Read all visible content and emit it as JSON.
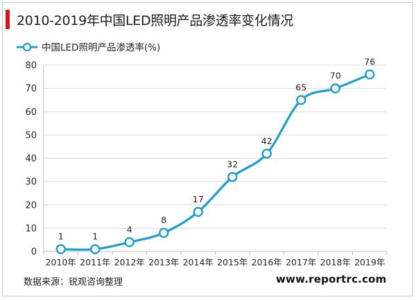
{
  "header": {
    "title": "2010-2019年中国LED照明产品渗透率变化情况"
  },
  "footer": {
    "source": "数据来源：锐观咨询整理",
    "site": "www.reportrc.com"
  },
  "colors": {
    "accent_bar": "#d9161c",
    "series_line": "#1e9fcb",
    "grid": "#d9d9d9",
    "axis": "#bfbfbf"
  },
  "chart_data": {
    "type": "line",
    "title": "",
    "xlabel": "",
    "ylabel": "",
    "categories": [
      "2010年",
      "2011年",
      "2012年",
      "2013年",
      "2014年",
      "2015年",
      "2016年",
      "2017年",
      "2018年",
      "2019年"
    ],
    "ylim": [
      0,
      80
    ],
    "yticks": [
      0,
      10,
      20,
      30,
      40,
      50,
      60,
      70,
      80
    ],
    "grid": true,
    "legend_position": "top-left",
    "smooth": true,
    "series": [
      {
        "name": "中国LED照明产品渗透率(%)",
        "values": [
          1,
          1,
          4,
          8,
          17,
          32,
          42,
          65,
          70,
          76
        ],
        "data_labels": [
          "1",
          "1",
          "4",
          "8",
          "17",
          "32",
          "42",
          "65",
          "70",
          "76"
        ]
      }
    ]
  }
}
